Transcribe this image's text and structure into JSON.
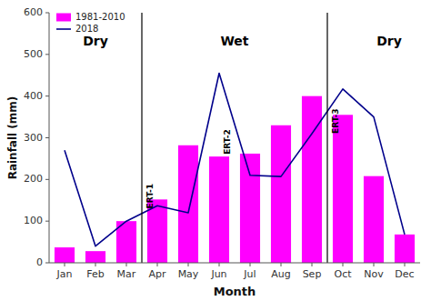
{
  "chart_data": {
    "type": "bar",
    "categories": [
      "Jan",
      "Feb",
      "Mar",
      "Apr",
      "May",
      "Jun",
      "Jul",
      "Aug",
      "Sep",
      "Oct",
      "Nov",
      "Dec"
    ],
    "series": [
      {
        "name": "1981-2010",
        "type": "bar",
        "color": "#FF00FF",
        "values": [
          37,
          28,
          100,
          152,
          282,
          255,
          262,
          330,
          400,
          355,
          208,
          68
        ]
      },
      {
        "name": "2018",
        "type": "line",
        "color": "#00008B",
        "values": [
          270,
          40,
          100,
          137,
          120,
          455,
          210,
          207,
          310,
          417,
          350,
          68
        ]
      }
    ],
    "xlabel": "Month",
    "ylabel": "Rainfall (mm)",
    "ylim": [
      0,
      600
    ],
    "yticks": [
      0,
      100,
      200,
      300,
      400,
      500,
      600
    ],
    "grid": false,
    "legend": "upper left",
    "vlines": [
      2.5,
      8.5
    ],
    "annotations": [
      {
        "text": "Dry",
        "x": 1.0,
        "y": 530
      },
      {
        "text": "Wet",
        "x": 5.5,
        "y": 530
      },
      {
        "text": "Dry",
        "x": 10.5,
        "y": 530
      }
    ],
    "line_labels": [
      {
        "text": "ERT-1",
        "x": 2.62,
        "y": 160
      },
      {
        "text": "ERT-2",
        "x": 5.12,
        "y": 290
      },
      {
        "text": "ERT-3",
        "x": 8.62,
        "y": 340
      }
    ]
  }
}
